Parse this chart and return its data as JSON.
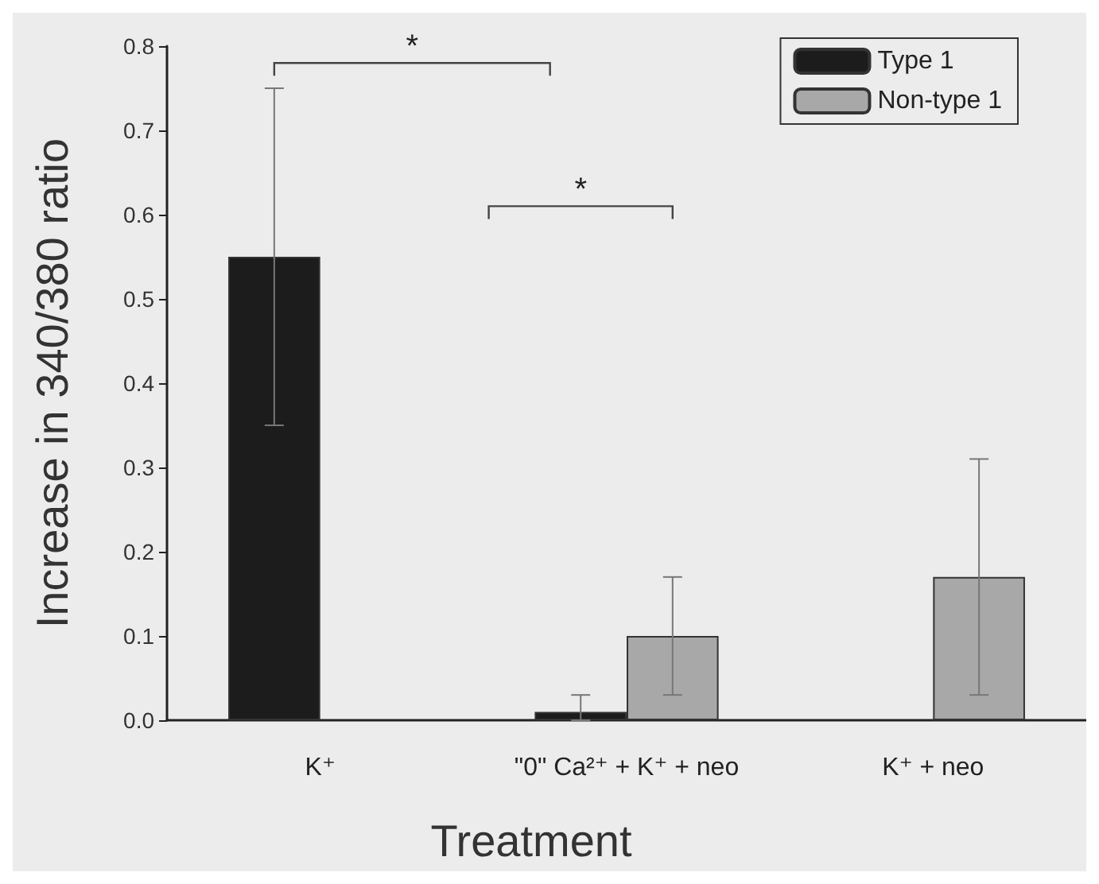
{
  "chart_data": {
    "type": "bar",
    "xlabel": "Treatment",
    "ylabel": "Increase in 340/380 ratio",
    "categories": [
      "K⁺",
      "\"0\" Ca²⁺ + K⁺ + neo",
      "K⁺ + neo"
    ],
    "series": [
      {
        "name": "Type 1",
        "color": "#1c1c1c",
        "values": [
          0.55,
          0.01,
          null
        ],
        "errors": [
          [
            0.35,
            0.75
          ],
          [
            0,
            0.03
          ],
          null
        ]
      },
      {
        "name": "Non-type 1",
        "color": "#a8a8a8",
        "values": [
          null,
          0.1,
          0.17
        ],
        "errors": [
          null,
          [
            0.03,
            0.17
          ],
          [
            0.03,
            0.31
          ]
        ]
      }
    ],
    "ylim": [
      0,
      0.8
    ],
    "yticks": [
      {
        "value": 0,
        "label": "0.0"
      },
      {
        "value": 0.1,
        "label": "0.1"
      },
      {
        "value": 0.2,
        "label": "0.2"
      },
      {
        "value": 0.3,
        "label": "0.3"
      },
      {
        "value": 0.4,
        "label": "0.4"
      },
      {
        "value": 0.5,
        "label": "0.5"
      },
      {
        "value": 0.6,
        "label": "0.6"
      },
      {
        "value": 0.7,
        "label": "0.7"
      },
      {
        "value": 0.8,
        "label": "0.8"
      }
    ],
    "grid": false,
    "legend": "top right",
    "annotations": [
      "*",
      "*"
    ]
  }
}
